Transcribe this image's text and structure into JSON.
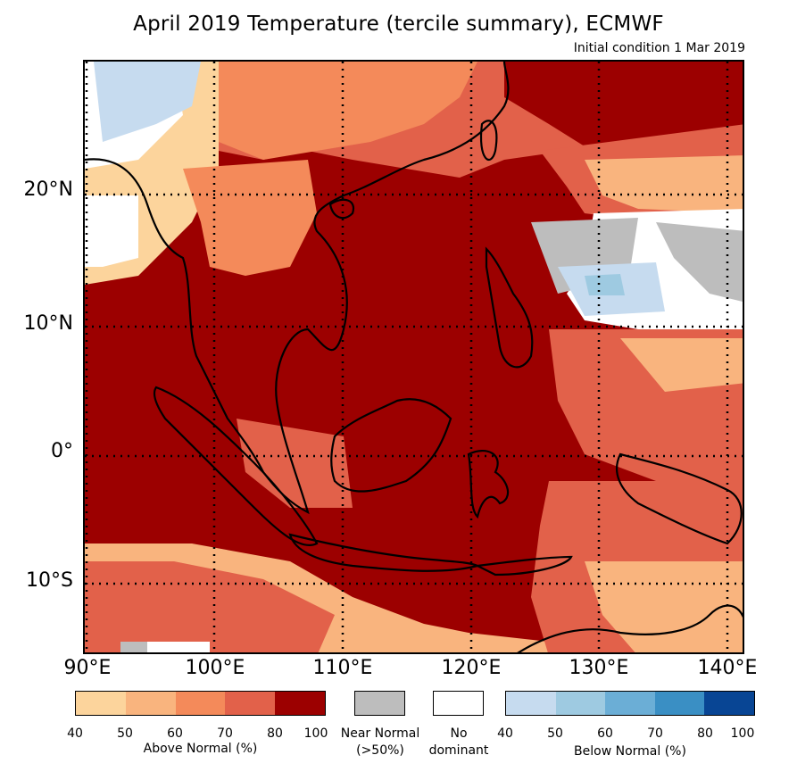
{
  "title": "April 2019 Temperature (tercile summary), ECMWF",
  "subtitle": "Initial condition 1 Mar 2019",
  "axes": {
    "lat_labels": [
      "20°N",
      "10°N",
      "0°",
      "10°S"
    ],
    "lon_labels": [
      "90°E",
      "100°E",
      "110°E",
      "120°E",
      "130°E",
      "140°E"
    ],
    "lon_range": [
      90,
      141
    ],
    "lat_range": [
      -15,
      30
    ]
  },
  "legend": {
    "above": {
      "label": "Above Normal (%)",
      "ticks": [
        "40",
        "50",
        "60",
        "70",
        "80",
        "100"
      ],
      "colors": [
        "#fcd49c",
        "#f9b47e",
        "#f48a5a",
        "#e2614a",
        "#9c0000"
      ]
    },
    "near": {
      "label_line1": "Near Normal",
      "label_line2": "(>50%)",
      "color": "#bdbdbd"
    },
    "none": {
      "label_line1": "No",
      "label_line2": "dominant",
      "color": "#ffffff"
    },
    "below": {
      "label": "Below Normal (%)",
      "ticks": [
        "40",
        "50",
        "60",
        "70",
        "80",
        "100"
      ],
      "colors": [
        "#c6dbef",
        "#9ecae1",
        "#6baed6",
        "#3a8fc4",
        "#084594"
      ]
    }
  },
  "map_regions": [
    {
      "name": "Dominant above normal 80-100% over Indian Ocean, South China Sea, Java Sea, Borneo, Sumatra",
      "category": "above-80-100"
    },
    {
      "name": "Above normal 60-80% east of Philippines and northern Pacific",
      "category": "above-60-80"
    },
    {
      "name": "Above normal 40-60% southern Indian Ocean and southern China",
      "category": "above-40-60"
    },
    {
      "name": "No dominant / near normal zone 12-20N, 123-141E",
      "category": "none-near"
    },
    {
      "name": "Below normal patches over Myanmar and northeast India",
      "category": "below-40-50"
    }
  ]
}
